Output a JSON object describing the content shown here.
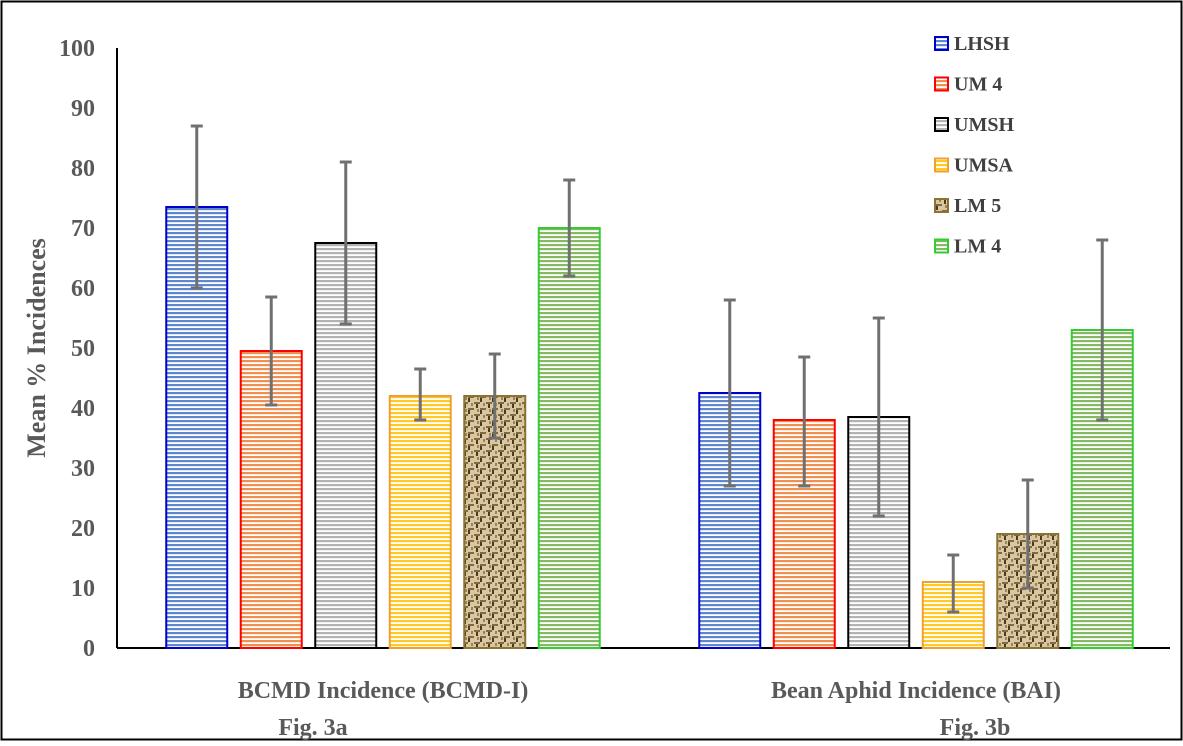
{
  "chart_data": {
    "type": "bar",
    "title": "",
    "ylabel": "Mean % Incidences",
    "ylim": [
      0,
      100
    ],
    "yticks": [
      "0",
      "10",
      "20",
      "30",
      "40",
      "50",
      "60",
      "70",
      "80",
      "90",
      "100"
    ],
    "categories": [
      "BCMD Incidence (BCMD-I)",
      "Bean Aphid Incidence (BAI)"
    ],
    "figure_labels": [
      "Fig. 3a",
      "Fig. 3b"
    ],
    "legend_position": "top-right",
    "series": [
      {
        "name": "LHSH",
        "values": [
          73.5,
          42.5
        ],
        "error_low": [
          60,
          27
        ],
        "error_high": [
          87,
          58
        ],
        "color": "#4472C4",
        "edge": "#0000CC",
        "pattern": "stripes"
      },
      {
        "name": "UM 4",
        "values": [
          49.5,
          38
        ],
        "error_low": [
          40.5,
          27
        ],
        "error_high": [
          58.5,
          48.5
        ],
        "color": "#ED7D31",
        "edge": "#FF0000",
        "pattern": "stripes"
      },
      {
        "name": "UMSH",
        "values": [
          67.5,
          38.5
        ],
        "error_low": [
          54,
          22
        ],
        "error_high": [
          81,
          55
        ],
        "color": "#A5A5A5",
        "edge": "#000000",
        "pattern": "stripes"
      },
      {
        "name": "UMSA",
        "values": [
          42,
          11
        ],
        "error_low": [
          38,
          6
        ],
        "error_high": [
          46.5,
          15.5
        ],
        "color": "#FFC000",
        "edge": "#F0A030",
        "pattern": "stripes"
      },
      {
        "name": "LM 5",
        "values": [
          42,
          19
        ],
        "error_low": [
          35,
          10
        ],
        "error_high": [
          49,
          28
        ],
        "color": "#7F6A45",
        "edge": "#8B7332",
        "pattern": "weave"
      },
      {
        "name": "LM 4",
        "values": [
          70,
          53
        ],
        "error_low": [
          62,
          38
        ],
        "error_high": [
          78,
          68
        ],
        "color": "#70AD47",
        "edge": "#32CD32",
        "pattern": "stripes"
      }
    ]
  }
}
